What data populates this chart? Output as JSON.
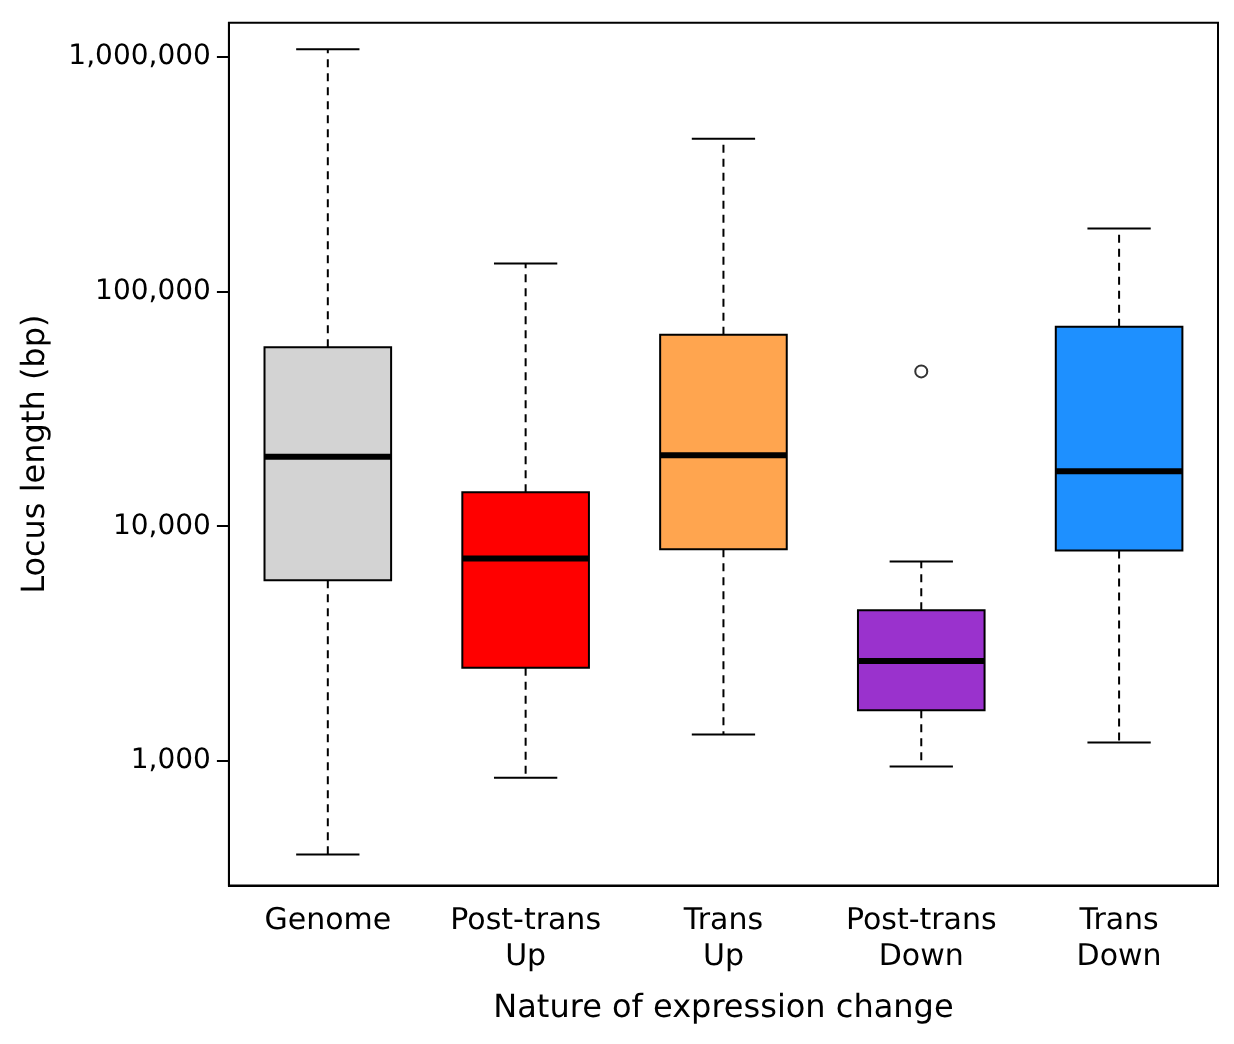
{
  "chart_data": {
    "type": "box",
    "xlabel": "Nature of expression change",
    "ylabel": "Locus length (bp)",
    "categories": [
      "Genome",
      "Post-trans Up",
      "Trans Up",
      "Post-trans Down",
      "Trans Down"
    ],
    "colors": [
      "#d3d3d3",
      "#ff0000",
      "#ffa54f",
      "#9a32cd",
      "#1e90ff"
    ],
    "boxes": [
      {
        "low": 400,
        "q1": 5900,
        "median": 19800,
        "q3": 58000,
        "high": 1080000
      },
      {
        "low": 850,
        "q1": 2500,
        "median": 7300,
        "q3": 14000,
        "high": 132000
      },
      {
        "low": 1300,
        "q1": 8000,
        "median": 20100,
        "q3": 65600,
        "high": 449000
      },
      {
        "low": 950,
        "q1": 1650,
        "median": 2670,
        "q3": 4400,
        "high": 7100,
        "outliers": [
          45800
        ]
      },
      {
        "low": 1200,
        "q1": 7900,
        "median": 17200,
        "q3": 71000,
        "high": 186000
      }
    ],
    "log": "y",
    "ylim": [
      295,
      1400000
    ],
    "yticks": [
      {
        "value": 1000,
        "label": "1,000"
      },
      {
        "value": 10000,
        "label": "10,000"
      },
      {
        "value": 100000,
        "label": "100,000"
      },
      {
        "value": 1000000,
        "label": "1,000,000"
      }
    ],
    "grid": false,
    "legend": false
  }
}
